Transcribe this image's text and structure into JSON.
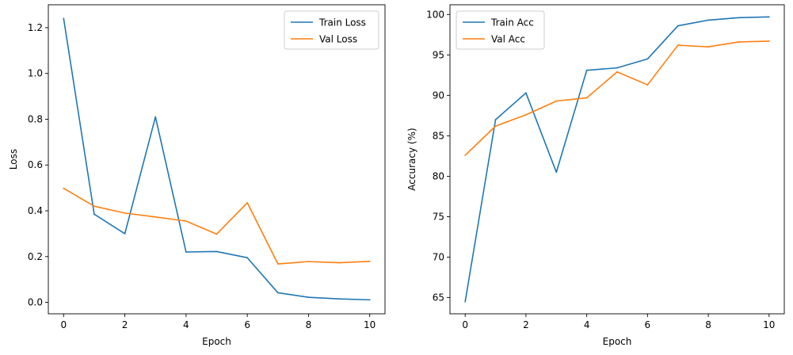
{
  "chart_data": [
    {
      "type": "line",
      "x": [
        0,
        1,
        2,
        3,
        4,
        5,
        6,
        7,
        8,
        9,
        10
      ],
      "series": [
        {
          "name": "Train Loss",
          "color": "#1f77b4",
          "values": [
            1.24,
            0.385,
            0.3,
            0.81,
            0.22,
            0.222,
            0.195,
            0.042,
            0.022,
            0.015,
            0.011
          ]
        },
        {
          "name": "Val Loss",
          "color": "#ff7f0e",
          "values": [
            0.498,
            0.42,
            0.39,
            0.373,
            0.355,
            0.298,
            0.435,
            0.168,
            0.178,
            0.173,
            0.179
          ]
        }
      ],
      "xlabel": "Epoch",
      "ylabel": "Loss",
      "xlim": [
        -0.5,
        10.5
      ],
      "ylim": [
        -0.05,
        1.3
      ],
      "xticks": [
        0,
        2,
        4,
        6,
        8,
        10
      ],
      "xtick_labels": [
        "0",
        "2",
        "4",
        "6",
        "8",
        "10"
      ],
      "yticks": [
        0.0,
        0.2,
        0.4,
        0.6,
        0.8,
        1.0,
        1.2
      ],
      "ytick_labels": [
        "0.0",
        "0.2",
        "0.4",
        "0.6",
        "0.8",
        "1.0",
        "1.2"
      ],
      "legend": "top-right",
      "grid": false
    },
    {
      "type": "line",
      "x": [
        0,
        1,
        2,
        3,
        4,
        5,
        6,
        7,
        8,
        9,
        10
      ],
      "series": [
        {
          "name": "Train Acc",
          "color": "#1f77b4",
          "values": [
            64.5,
            87.0,
            90.3,
            80.5,
            93.1,
            93.4,
            94.5,
            98.6,
            99.3,
            99.6,
            99.7
          ]
        },
        {
          "name": "Val Acc",
          "color": "#ff7f0e",
          "values": [
            82.6,
            86.2,
            87.6,
            89.3,
            89.7,
            92.9,
            91.3,
            96.2,
            96.0,
            96.6,
            96.7
          ]
        }
      ],
      "xlabel": "Epoch",
      "ylabel": "Accuracy (%)",
      "xlim": [
        -0.5,
        10.5
      ],
      "ylim": [
        63.0,
        101.2
      ],
      "xticks": [
        0,
        2,
        4,
        6,
        8,
        10
      ],
      "xtick_labels": [
        "0",
        "2",
        "4",
        "6",
        "8",
        "10"
      ],
      "yticks": [
        65,
        70,
        75,
        80,
        85,
        90,
        95,
        100
      ],
      "ytick_labels": [
        "65",
        "70",
        "75",
        "80",
        "85",
        "90",
        "95",
        "100"
      ],
      "legend": "top-left",
      "grid": false
    }
  ]
}
